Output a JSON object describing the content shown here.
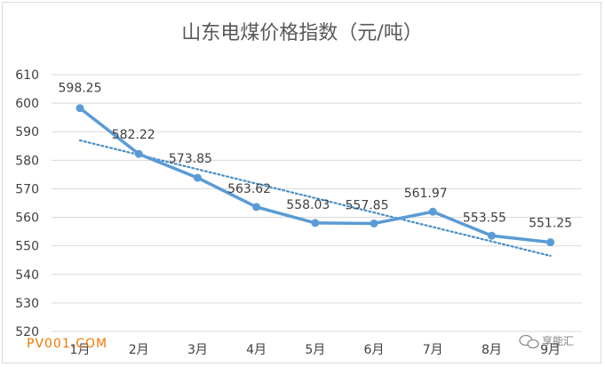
{
  "chart_data": {
    "type": "line",
    "title": "山东电煤价格指数（元/吨）",
    "categories": [
      "1月",
      "2月",
      "3月",
      "4月",
      "5月",
      "6月",
      "7月",
      "8月",
      "9月"
    ],
    "series": [
      {
        "values": [
          598.25,
          582.22,
          573.85,
          563.62,
          558.03,
          557.85,
          561.97,
          553.55,
          551.25
        ],
        "labels": [
          "598.25",
          "582.22",
          "573.85",
          "563.62",
          "558.03",
          "557.85",
          "561.97",
          "553.55",
          "551.25"
        ]
      }
    ],
    "trendline": {
      "type": "linear",
      "style": "dotted"
    },
    "ylim": [
      520,
      610
    ],
    "yticks": [
      "520",
      "530",
      "540",
      "550",
      "560",
      "570",
      "580",
      "590",
      "600",
      "610"
    ],
    "grid": true,
    "legend": "none",
    "colors": {
      "line": "#5b9bd5",
      "trend": "#4a8fc4",
      "grid": "#d9d9d9"
    }
  },
  "watermarks": {
    "left": "PV001.COM",
    "right": "享能汇"
  }
}
